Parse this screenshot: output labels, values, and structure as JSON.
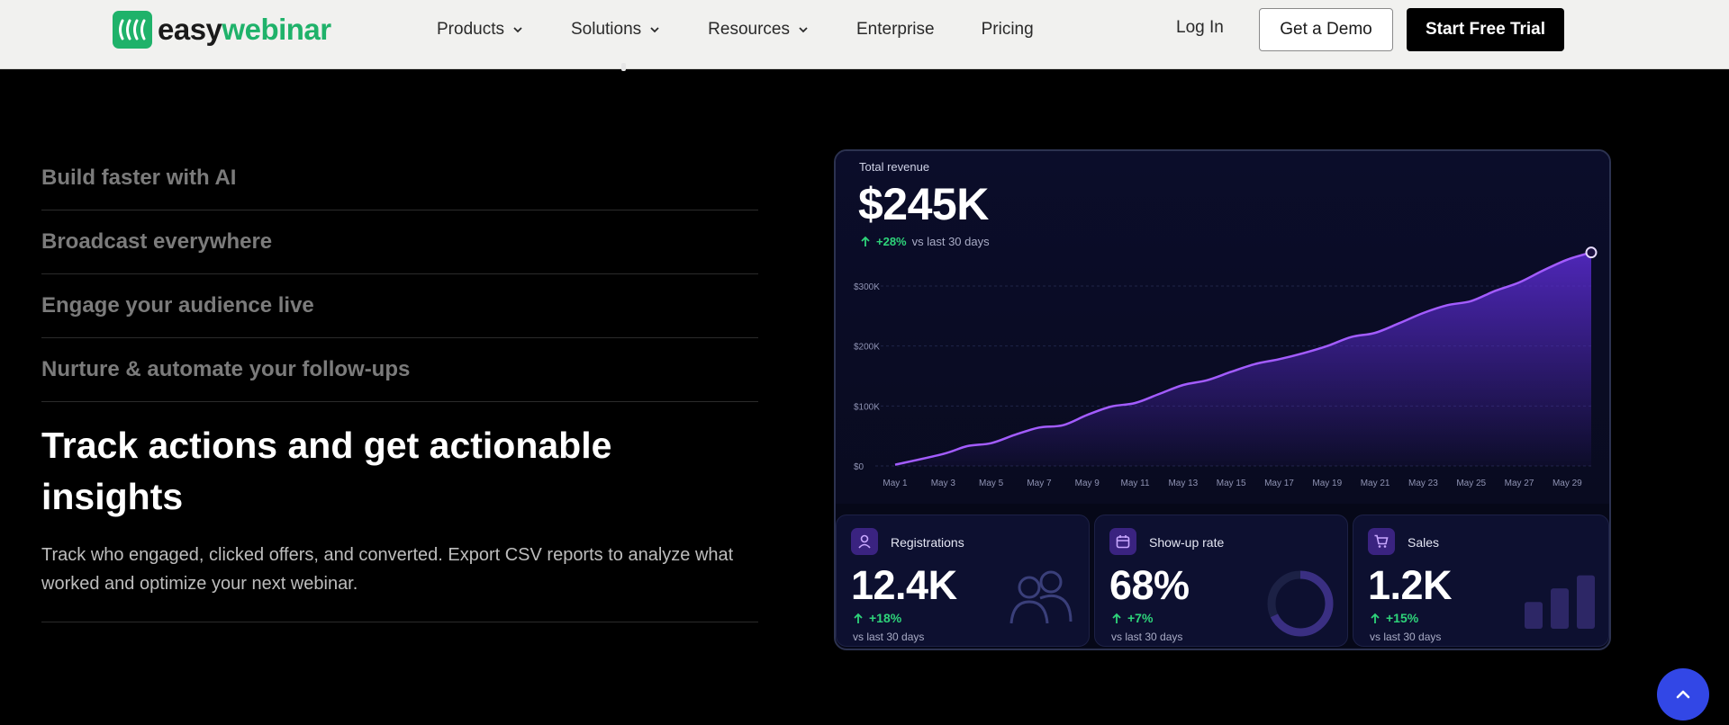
{
  "brand": {
    "name_part1": "easy",
    "name_part2": "webinar",
    "green": "#1fb26a"
  },
  "nav": {
    "items": [
      {
        "label": "Products",
        "has_dropdown": true
      },
      {
        "label": "Solutions",
        "has_dropdown": true
      },
      {
        "label": "Resources",
        "has_dropdown": true
      },
      {
        "label": "Enterprise",
        "has_dropdown": false
      },
      {
        "label": "Pricing",
        "has_dropdown": false
      }
    ],
    "login": "Log In",
    "demo": "Get a Demo",
    "trial": "Start Free Trial"
  },
  "features": {
    "collapsed": [
      "Build faster with AI",
      "Broadcast everywhere",
      "Engage your audience live",
      "Nurture & automate your follow-ups"
    ],
    "active_title": "Track actions and get actionable insights",
    "active_desc": "Track who engaged, clicked offers, and converted. Export CSV reports to analyze what worked and optimize your next webinar."
  },
  "dashboard": {
    "revenue_label": "Total revenue",
    "revenue_value": "$245K",
    "revenue_delta": "+28%",
    "revenue_delta_sub": "vs last 30 days",
    "chart_data": {
      "type": "area",
      "y_ticks": [
        "$300K",
        "$200K",
        "$100K",
        "$0"
      ],
      "x_ticks": [
        "May 1",
        "May 3",
        "May 5",
        "May 7",
        "May 9",
        "May 11",
        "May 13",
        "May 15",
        "May 17",
        "May 19",
        "May 21",
        "May 23",
        "May 25",
        "May 27",
        "May 29"
      ],
      "ylim": [
        0,
        300000
      ],
      "x_range_days": [
        1,
        30
      ],
      "points": [
        [
          1,
          2000
        ],
        [
          3,
          20000
        ],
        [
          4,
          33000
        ],
        [
          5,
          38000
        ],
        [
          6,
          52000
        ],
        [
          7,
          64000
        ],
        [
          8,
          68000
        ],
        [
          9,
          85000
        ],
        [
          10,
          99000
        ],
        [
          11,
          105000
        ],
        [
          12,
          120000
        ],
        [
          13,
          135000
        ],
        [
          14,
          143000
        ],
        [
          15,
          157000
        ],
        [
          16,
          170000
        ],
        [
          17,
          178000
        ],
        [
          18,
          188000
        ],
        [
          19,
          200000
        ],
        [
          20,
          215000
        ],
        [
          21,
          222000
        ],
        [
          22,
          238000
        ],
        [
          23,
          255000
        ],
        [
          24,
          268000
        ],
        [
          25,
          275000
        ],
        [
          26,
          292000
        ],
        [
          27,
          306000
        ],
        [
          28,
          326000
        ],
        [
          29,
          344000
        ],
        [
          30,
          356000
        ]
      ],
      "line_color": "#a35cff",
      "fill_color": "#5a2bd0"
    },
    "stats": [
      {
        "label": "Registrations",
        "value": "12.4K",
        "delta": "+18%",
        "sub": "vs last 30 days",
        "icon": "user-icon"
      },
      {
        "label": "Show-up rate",
        "value": "68%",
        "delta": "+7%",
        "sub": "vs last 30 days",
        "icon": "calendar-icon",
        "ring_fraction": 0.68
      },
      {
        "label": "Sales",
        "value": "1.2K",
        "delta": "+15%",
        "sub": "vs last 30 days",
        "icon": "cart-icon",
        "bars": [
          0.45,
          0.68,
          0.9
        ]
      }
    ]
  }
}
